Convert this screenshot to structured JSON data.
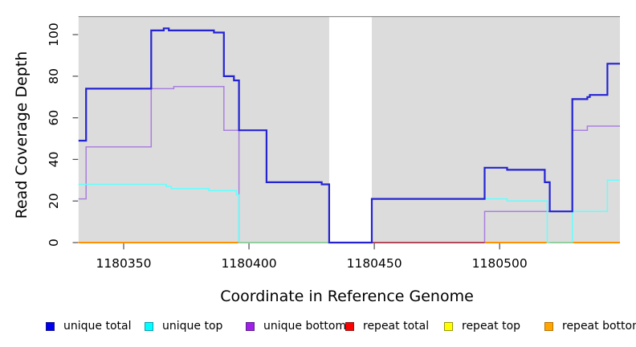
{
  "chart_data": {
    "type": "line",
    "subtype": "step-coverage",
    "title": "",
    "xlabel": "Coordinate in Reference Genome",
    "ylabel": "Read Coverage Depth",
    "xlim": [
      1180332,
      1180548
    ],
    "ylim": [
      0,
      109
    ],
    "x_ticks": [
      1180350,
      1180400,
      1180450,
      1180500
    ],
    "y_ticks": [
      0,
      20,
      40,
      60,
      80,
      100
    ],
    "grid": false,
    "plot_background": "#DCDCDC",
    "plot_top_border_color": "#8F8F8F",
    "masked_region": {
      "x0": 1180432,
      "x1": 1180449,
      "color": "#FFFFFF"
    },
    "series": [
      {
        "name": "unique total",
        "color": "#2423D2",
        "line_width": 2.2,
        "steps": [
          [
            1180332,
            49
          ],
          [
            1180335,
            74
          ],
          [
            1180361,
            102
          ],
          [
            1180366,
            103
          ],
          [
            1180368,
            102
          ],
          [
            1180386,
            101
          ],
          [
            1180390,
            80
          ],
          [
            1180394,
            78
          ],
          [
            1180396,
            54
          ],
          [
            1180407,
            29
          ],
          [
            1180429,
            28
          ],
          [
            1180432,
            0
          ],
          [
            1180449,
            21
          ],
          [
            1180494,
            36
          ],
          [
            1180503,
            35
          ],
          [
            1180518,
            29
          ],
          [
            1180520,
            15
          ],
          [
            1180529,
            69
          ],
          [
            1180535,
            70
          ],
          [
            1180536,
            71
          ],
          [
            1180543,
            86
          ]
        ]
      },
      {
        "name": "unique top",
        "color": "#63FFFF",
        "line_width": 1.5,
        "steps": [
          [
            1180332,
            28
          ],
          [
            1180367,
            27
          ],
          [
            1180369,
            26
          ],
          [
            1180384,
            25
          ],
          [
            1180395,
            23
          ],
          [
            1180396,
            0
          ],
          [
            1180449,
            21
          ],
          [
            1180503,
            20
          ],
          [
            1180519,
            0
          ],
          [
            1180529,
            15
          ],
          [
            1180543,
            30
          ]
        ]
      },
      {
        "name": "unique bottom",
        "color": "#A97FDE",
        "line_width": 1.5,
        "steps": [
          [
            1180332,
            21
          ],
          [
            1180335,
            46
          ],
          [
            1180361,
            74
          ],
          [
            1180370,
            75
          ],
          [
            1180390,
            54
          ],
          [
            1180396,
            0
          ],
          [
            1180494,
            15
          ],
          [
            1180529,
            54
          ],
          [
            1180535,
            56
          ]
        ]
      },
      {
        "name": "repeat total",
        "color": "#CC2222",
        "line_width": 1.5,
        "steps": [
          [
            1180332,
            0
          ]
        ]
      },
      {
        "name": "repeat top",
        "color": "#F2F200",
        "line_width": 1.5,
        "steps": [
          [
            1180332,
            0
          ]
        ]
      },
      {
        "name": "repeat bottom",
        "color": "#FF9100",
        "line_width": 2,
        "steps": [
          [
            1180332,
            0
          ]
        ]
      }
    ],
    "zero_line_overlap_segments": [
      {
        "x0": 1180396,
        "x1": 1180432,
        "color": "#93CF9E"
      },
      {
        "x0": 1180449,
        "x1": 1180494,
        "color": "#B34A5C"
      },
      {
        "x0": 1180520,
        "x1": 1180529,
        "color": "#93CF9E"
      }
    ],
    "legend": {
      "position": "bottom",
      "entries": [
        {
          "label": "unique total",
          "fill": "#0000F0",
          "border": "#14148C"
        },
        {
          "label": "unique top",
          "fill": "#00FFFF",
          "border": "#0A9EB0"
        },
        {
          "label": "unique bottom",
          "fill": "#A020E8",
          "border": "#5E1E8F"
        },
        {
          "label": "repeat total",
          "fill": "#FF0000",
          "border": "#8B1A1A"
        },
        {
          "label": "repeat top",
          "fill": "#FFFF00",
          "border": "#99990A"
        },
        {
          "label": "repeat bottom",
          "fill": "#FFA500",
          "border": "#B87300"
        }
      ]
    }
  }
}
